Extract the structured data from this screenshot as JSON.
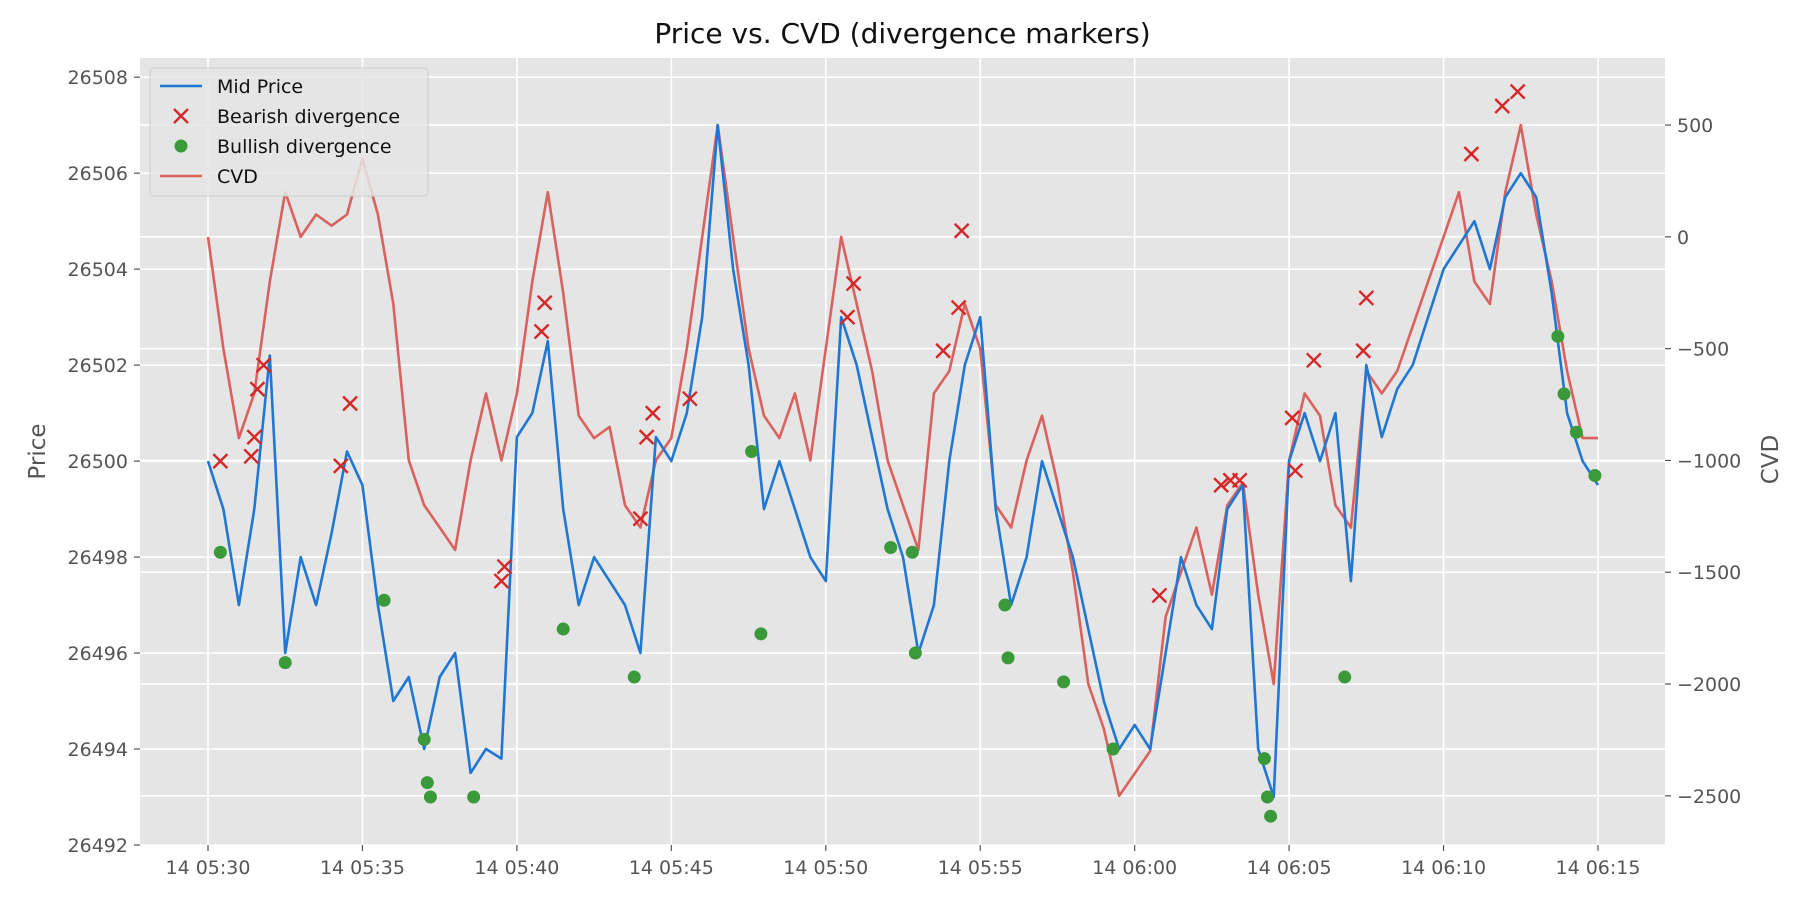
{
  "chart_data": {
    "type": "line",
    "title": "Price vs. CVD (divergence markers)",
    "ylabel": "Price",
    "y2label": "CVD",
    "xlim": [
      "05:30",
      "06:15"
    ],
    "ylim": [
      26492,
      26508.4
    ],
    "y2lim": [
      -2720,
      800
    ],
    "x_ticks": [
      {
        "t": "05:30",
        "label": "14 05:30"
      },
      {
        "t": "05:35",
        "label": "14 05:35"
      },
      {
        "t": "05:40",
        "label": "14 05:40"
      },
      {
        "t": "05:45",
        "label": "14 05:45"
      },
      {
        "t": "05:50",
        "label": "14 05:50"
      },
      {
        "t": "05:55",
        "label": "14 05:55"
      },
      {
        "t": "06:00",
        "label": "14 06:00"
      },
      {
        "t": "06:05",
        "label": "14 06:05"
      },
      {
        "t": "06:10",
        "label": "14 06:10"
      },
      {
        "t": "06:15",
        "label": "14 06:15"
      }
    ],
    "y_ticks": [
      26492,
      26494,
      26496,
      26498,
      26500,
      26502,
      26504,
      26506,
      26508
    ],
    "y2_ticks": [
      500,
      0,
      -500,
      -1000,
      -1500,
      -2000,
      -2500
    ],
    "grid": true,
    "legend_position": "top-left",
    "colors": {
      "mid_price": "#1f77d4",
      "cvd": "#d9625f",
      "bearish": "#d62728",
      "bullish": "#3a9a3a",
      "plot_bg": "#e5e5e5",
      "grid": "#ffffff"
    },
    "series": [
      {
        "name": "Mid Price",
        "kind": "line",
        "points": [
          [
            "05:30",
            26500.0
          ],
          [
            "05:30.5",
            26499.0
          ],
          [
            "05:31",
            26497.0
          ],
          [
            "05:31.5",
            26499.0
          ],
          [
            "05:32",
            26502.2
          ],
          [
            "05:32.5",
            26496.0
          ],
          [
            "05:33",
            26498.0
          ],
          [
            "05:33.5",
            26497.0
          ],
          [
            "05:34",
            26498.5
          ],
          [
            "05:34.5",
            26500.2
          ],
          [
            "05:35",
            26499.5
          ],
          [
            "05:35.5",
            26497.0
          ],
          [
            "05:36",
            26495.0
          ],
          [
            "05:36.5",
            26495.5
          ],
          [
            "05:37",
            26494.0
          ],
          [
            "05:37.5",
            26495.5
          ],
          [
            "05:38",
            26496.0
          ],
          [
            "05:38.5",
            26493.5
          ],
          [
            "05:39",
            26494.0
          ],
          [
            "05:39.5",
            26493.8
          ],
          [
            "05:40",
            26500.5
          ],
          [
            "05:40.5",
            26501.0
          ],
          [
            "05:41",
            26502.5
          ],
          [
            "05:41.5",
            26499.0
          ],
          [
            "05:42",
            26497.0
          ],
          [
            "05:42.5",
            26498.0
          ],
          [
            "05:43",
            26497.5
          ],
          [
            "05:43.5",
            26497.0
          ],
          [
            "05:44",
            26496.0
          ],
          [
            "05:44.5",
            26500.5
          ],
          [
            "05:45",
            26500.0
          ],
          [
            "05:45.5",
            26501.0
          ],
          [
            "05:46",
            26503.0
          ],
          [
            "05:46.5",
            26507.0
          ],
          [
            "05:47",
            26504.0
          ],
          [
            "05:47.5",
            26502.0
          ],
          [
            "05:48",
            26499.0
          ],
          [
            "05:48.5",
            26500.0
          ],
          [
            "05:49",
            26499.0
          ],
          [
            "05:49.5",
            26498.0
          ],
          [
            "05:50",
            26497.5
          ],
          [
            "05:50.5",
            26503.0
          ],
          [
            "05:51",
            26502.0
          ],
          [
            "05:51.5",
            26500.5
          ],
          [
            "05:52",
            26499.0
          ],
          [
            "05:52.5",
            26498.0
          ],
          [
            "05:53",
            26496.0
          ],
          [
            "05:53.5",
            26497.0
          ],
          [
            "05:54",
            26500.0
          ],
          [
            "05:54.5",
            26502.0
          ],
          [
            "05:55",
            26503.0
          ],
          [
            "05:55.5",
            26499.0
          ],
          [
            "05:56",
            26497.0
          ],
          [
            "05:56.5",
            26498.0
          ],
          [
            "05:57",
            26500.0
          ],
          [
            "05:57.5",
            26499.0
          ],
          [
            "05:58",
            26498.0
          ],
          [
            "05:58.5",
            26496.5
          ],
          [
            "05:59",
            26495.0
          ],
          [
            "05:59.5",
            26494.0
          ],
          [
            "06:00",
            26494.5
          ],
          [
            "06:00.5",
            26494.0
          ],
          [
            "06:01",
            26496.0
          ],
          [
            "06:01.5",
            26498.0
          ],
          [
            "06:02",
            26497.0
          ],
          [
            "06:02.5",
            26496.5
          ],
          [
            "06:03",
            26499.0
          ],
          [
            "06:03.5",
            26499.5
          ],
          [
            "06:04",
            26494.0
          ],
          [
            "06:04.5",
            26493.0
          ],
          [
            "06:05",
            26500.0
          ],
          [
            "06:05.5",
            26501.0
          ],
          [
            "06:06",
            26500.0
          ],
          [
            "06:06.5",
            26501.0
          ],
          [
            "06:07",
            26497.5
          ],
          [
            "06:07.5",
            26502.0
          ],
          [
            "06:08",
            26500.5
          ],
          [
            "06:08.5",
            26501.5
          ],
          [
            "06:09",
            26502.0
          ],
          [
            "06:09.5",
            26503.0
          ],
          [
            "06:10",
            26504.0
          ],
          [
            "06:10.5",
            26504.5
          ],
          [
            "06:11",
            26505.0
          ],
          [
            "06:11.5",
            26504.0
          ],
          [
            "06:12",
            26505.5
          ],
          [
            "06:12.5",
            26506.0
          ],
          [
            "06:13",
            26505.5
          ],
          [
            "06:13.5",
            26503.5
          ],
          [
            "06:14",
            26501.0
          ],
          [
            "06:14.5",
            26500.0
          ],
          [
            "06:15",
            26499.5
          ]
        ]
      },
      {
        "name": "CVD",
        "kind": "line",
        "axis": "right",
        "points": [
          [
            "05:30",
            0
          ],
          [
            "05:30.5",
            -500
          ],
          [
            "05:31",
            -900
          ],
          [
            "05:31.5",
            -700
          ],
          [
            "05:32",
            -200
          ],
          [
            "05:32.5",
            200
          ],
          [
            "05:33",
            0
          ],
          [
            "05:33.5",
            100
          ],
          [
            "05:34",
            50
          ],
          [
            "05:34.5",
            100
          ],
          [
            "05:35",
            350
          ],
          [
            "05:35.5",
            100
          ],
          [
            "05:36",
            -300
          ],
          [
            "05:36.5",
            -1000
          ],
          [
            "05:37",
            -1200
          ],
          [
            "05:37.5",
            -1300
          ],
          [
            "05:38",
            -1400
          ],
          [
            "05:38.5",
            -1000
          ],
          [
            "05:39",
            -700
          ],
          [
            "05:39.5",
            -1000
          ],
          [
            "05:40",
            -700
          ],
          [
            "05:40.5",
            -200
          ],
          [
            "05:41",
            200
          ],
          [
            "05:41.5",
            -250
          ],
          [
            "05:42",
            -800
          ],
          [
            "05:42.5",
            -900
          ],
          [
            "05:43",
            -850
          ],
          [
            "05:43.5",
            -1200
          ],
          [
            "05:44",
            -1300
          ],
          [
            "05:44.5",
            -1000
          ],
          [
            "05:45",
            -900
          ],
          [
            "05:45.5",
            -500
          ],
          [
            "05:46",
            0
          ],
          [
            "05:46.5",
            500
          ],
          [
            "05:47",
            0
          ],
          [
            "05:47.5",
            -500
          ],
          [
            "05:48",
            -800
          ],
          [
            "05:48.5",
            -900
          ],
          [
            "05:49",
            -700
          ],
          [
            "05:49.5",
            -1000
          ],
          [
            "05:50",
            -500
          ],
          [
            "05:50.5",
            0
          ],
          [
            "05:51",
            -300
          ],
          [
            "05:51.5",
            -600
          ],
          [
            "05:52",
            -1000
          ],
          [
            "05:52.5",
            -1200
          ],
          [
            "05:53",
            -1400
          ],
          [
            "05:53.5",
            -700
          ],
          [
            "05:54",
            -600
          ],
          [
            "05:54.5",
            -300
          ],
          [
            "05:55",
            -500
          ],
          [
            "05:55.5",
            -1200
          ],
          [
            "05:56",
            -1300
          ],
          [
            "05:56.5",
            -1000
          ],
          [
            "05:57",
            -800
          ],
          [
            "05:57.5",
            -1100
          ],
          [
            "05:58",
            -1500
          ],
          [
            "05:58.5",
            -2000
          ],
          [
            "05:59",
            -2200
          ],
          [
            "05:59.5",
            -2500
          ],
          [
            "06:00",
            -2400
          ],
          [
            "06:00.5",
            -2300
          ],
          [
            "06:01",
            -1700
          ],
          [
            "06:01.5",
            -1500
          ],
          [
            "06:02",
            -1300
          ],
          [
            "06:02.5",
            -1600
          ],
          [
            "06:03",
            -1200
          ],
          [
            "06:03.5",
            -1100
          ],
          [
            "06:04",
            -1600
          ],
          [
            "06:04.5",
            -2000
          ],
          [
            "06:05",
            -1000
          ],
          [
            "06:05.5",
            -700
          ],
          [
            "06:06",
            -800
          ],
          [
            "06:06.5",
            -1200
          ],
          [
            "06:07",
            -1300
          ],
          [
            "06:07.5",
            -600
          ],
          [
            "06:08",
            -700
          ],
          [
            "06:08.5",
            -600
          ],
          [
            "06:09",
            -400
          ],
          [
            "06:09.5",
            -200
          ],
          [
            "06:10",
            0
          ],
          [
            "06:10.5",
            200
          ],
          [
            "06:11",
            -200
          ],
          [
            "06:11.5",
            -300
          ],
          [
            "06:12",
            200
          ],
          [
            "06:12.5",
            500
          ],
          [
            "06:13",
            100
          ],
          [
            "06:13.5",
            -200
          ],
          [
            "06:14",
            -600
          ],
          [
            "06:14.5",
            -900
          ],
          [
            "06:15",
            -900
          ]
        ]
      },
      {
        "name": "Bearish divergence",
        "kind": "scatter",
        "marker": "x",
        "points": [
          [
            "05:30.4",
            26500.0
          ],
          [
            "05:31.4",
            26500.1
          ],
          [
            "05:31.5",
            26500.5
          ],
          [
            "05:31.6",
            26501.5
          ],
          [
            "05:31.8",
            26502.0
          ],
          [
            "05:34.3",
            26499.9
          ],
          [
            "05:34.6",
            26501.2
          ],
          [
            "05:39.5",
            26497.5
          ],
          [
            "05:39.6",
            26497.8
          ],
          [
            "05:40.8",
            26502.7
          ],
          [
            "05:40.9",
            26503.3
          ],
          [
            "05:44.0",
            26498.8
          ],
          [
            "05:44.2",
            26500.5
          ],
          [
            "05:44.4",
            26501.0
          ],
          [
            "05:45.6",
            26501.3
          ],
          [
            "05:50.7",
            26503.0
          ],
          [
            "05:50.9",
            26503.7
          ],
          [
            "05:53.8",
            26502.3
          ],
          [
            "05:54.3",
            26503.2
          ],
          [
            "05:54.4",
            26504.8
          ],
          [
            "06:00.8",
            26497.2
          ],
          [
            "06:02.8",
            26499.5
          ],
          [
            "06:03.1",
            26499.6
          ],
          [
            "06:03.4",
            26499.6
          ],
          [
            "06:05.1",
            26500.9
          ],
          [
            "06:05.2",
            26499.8
          ],
          [
            "06:05.8",
            26502.1
          ],
          [
            "06:07.4",
            26502.3
          ],
          [
            "06:07.5",
            26503.4
          ],
          [
            "06:10.9",
            26506.4
          ],
          [
            "06:11.9",
            26507.4
          ],
          [
            "06:12.4",
            26507.7
          ]
        ]
      },
      {
        "name": "Bullish divergence",
        "kind": "scatter",
        "marker": "o",
        "points": [
          [
            "05:30.4",
            26498.1
          ],
          [
            "05:32.5",
            26495.8
          ],
          [
            "05:35.7",
            26497.1
          ],
          [
            "05:37.0",
            26494.2
          ],
          [
            "05:37.1",
            26493.3
          ],
          [
            "05:37.2",
            26493.0
          ],
          [
            "05:38.6",
            26493.0
          ],
          [
            "05:41.5",
            26496.5
          ],
          [
            "05:43.8",
            26495.5
          ],
          [
            "05:47.6",
            26500.2
          ],
          [
            "05:47.9",
            26496.4
          ],
          [
            "05:52.1",
            26498.2
          ],
          [
            "05:52.8",
            26498.1
          ],
          [
            "05:52.9",
            26496.0
          ],
          [
            "05:55.8",
            26497.0
          ],
          [
            "05:55.9",
            26495.9
          ],
          [
            "05:57.7",
            26495.4
          ],
          [
            "05:59.3",
            26494.0
          ],
          [
            "06:04.2",
            26493.8
          ],
          [
            "06:04.3",
            26493.0
          ],
          [
            "06:04.4",
            26492.6
          ],
          [
            "06:06.8",
            26495.5
          ],
          [
            "06:13.7",
            26502.6
          ],
          [
            "06:13.9",
            26501.4
          ],
          [
            "06:14.3",
            26500.6
          ],
          [
            "06:14.9",
            26499.7
          ]
        ]
      }
    ]
  }
}
